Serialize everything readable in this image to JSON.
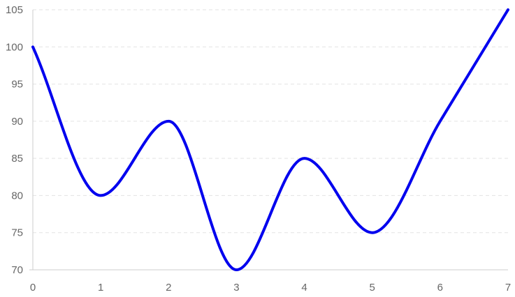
{
  "chart_data": {
    "type": "line",
    "title": "",
    "xlabel": "",
    "ylabel": "",
    "x": [
      0,
      1,
      2,
      3,
      4,
      5,
      6,
      7
    ],
    "xticks": [
      "0",
      "1",
      "2",
      "3",
      "4",
      "5",
      "6",
      "7"
    ],
    "yticks": [
      "70",
      "75",
      "80",
      "85",
      "90",
      "95",
      "100",
      "105"
    ],
    "xlim": [
      0,
      7
    ],
    "ylim": [
      70,
      105
    ],
    "grid": "horizontal-dashed",
    "legend": "none",
    "series": [
      {
        "values": [
          100,
          80,
          90,
          70,
          85,
          75,
          90,
          105
        ],
        "color": "#0000ee",
        "smooth": true
      }
    ]
  }
}
